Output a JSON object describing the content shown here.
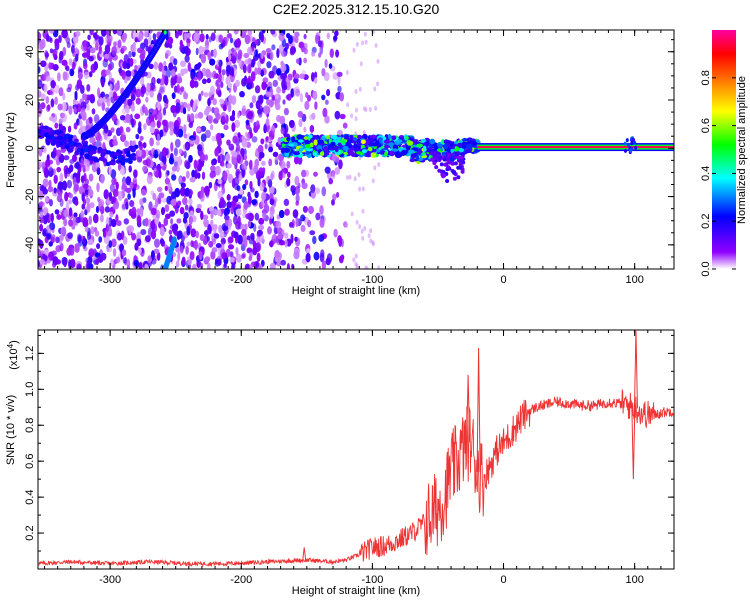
{
  "chart_data": [
    {
      "type": "heatmap",
      "title": "C2E2.2025.312.15.10.G20",
      "xlabel": "Height of straight line (km)",
      "ylabel": "Frequency (Hz)",
      "xlim": [
        -355,
        130
      ],
      "ylim": [
        -50,
        49
      ],
      "xticks": [
        "-300",
        "-200",
        "-100",
        "0",
        "100"
      ],
      "yticks": [
        "40",
        "20",
        "0",
        "-20",
        "-40"
      ],
      "grid": false,
      "colorbar": {
        "label": "Normalized spectral amplitude",
        "ticks": [
          "0.0",
          "0.2",
          "0.4",
          "0.6",
          "0.8"
        ],
        "range": [
          0,
          1
        ],
        "colors": [
          "#ffffff",
          "#8000ff",
          "#0000ff",
          "#00ffff",
          "#00ff00",
          "#ffff00",
          "#ff8000",
          "#ff0000",
          "#ff00a0"
        ]
      },
      "features": [
        {
          "name": "carrier",
          "x_start": -20,
          "x_end": 130,
          "frequency": 0.5,
          "amplitude": 0.95
        },
        {
          "name": "band",
          "x_start": -168,
          "x_end": -20,
          "frequency": 1,
          "amplitude": 0.4
        },
        {
          "name": "scatter",
          "x_start": -355,
          "x_end": -120,
          "amplitude": 0.2
        },
        {
          "name": "arc",
          "x_start": -320,
          "x_end": -258,
          "frequency_start": 5,
          "frequency_end": 48
        }
      ]
    },
    {
      "type": "line",
      "title": "",
      "xlabel": "Height of straight line (km)",
      "ylabel": "SNR (10 * v/v)",
      "scale_label": "(x10",
      "scale_exponent": "4",
      "xlim": [
        -355,
        130
      ],
      "ylim": [
        0,
        1.33
      ],
      "xticks": [
        "-300",
        "-200",
        "-100",
        "0",
        "100"
      ],
      "yticks": [
        "0.2",
        "0.4",
        "0.6",
        "0.8",
        "1.0",
        "1.2"
      ],
      "color": "#ee3333",
      "grid": false,
      "x": [
        -355,
        -330,
        -300,
        -270,
        -240,
        -210,
        -180,
        -150,
        -130,
        -120,
        -110,
        -100,
        -90,
        -80,
        -70,
        -60,
        -50,
        -45,
        -40,
        -35,
        -30,
        -25,
        -20,
        -15,
        -10,
        -5,
        0,
        5,
        10,
        15,
        20,
        25,
        30,
        40,
        50,
        60,
        70,
        80,
        90,
        95,
        100,
        105,
        110,
        115,
        120,
        130
      ],
      "y": [
        0.03,
        0.04,
        0.03,
        0.04,
        0.03,
        0.03,
        0.04,
        0.05,
        0.04,
        0.05,
        0.08,
        0.12,
        0.13,
        0.16,
        0.2,
        0.26,
        0.34,
        0.4,
        0.55,
        0.6,
        0.68,
        0.72,
        0.55,
        0.5,
        0.58,
        0.66,
        0.7,
        0.75,
        0.8,
        0.85,
        0.88,
        0.9,
        0.91,
        0.93,
        0.92,
        0.91,
        0.91,
        0.93,
        0.92,
        0.91,
        0.9,
        0.87,
        0.86,
        0.86,
        0.87,
        0.88
      ],
      "spikes": [
        {
          "x": -152,
          "y": 0.12
        },
        {
          "x": -27,
          "y": 1.08
        },
        {
          "x": -19,
          "y": 1.23
        },
        {
          "x": 99,
          "y": 0.5
        },
        {
          "x": 101,
          "y": 1.33
        }
      ]
    }
  ]
}
